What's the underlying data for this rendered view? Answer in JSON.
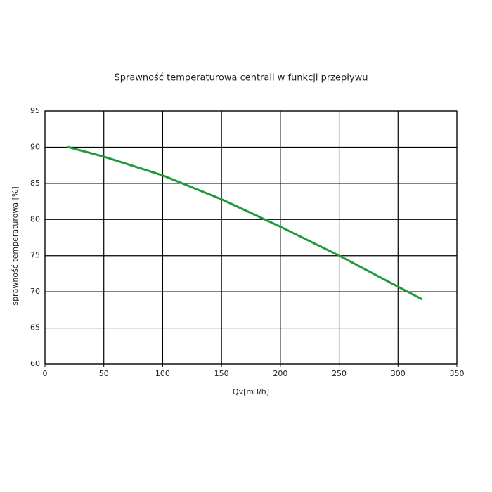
{
  "chart_data": {
    "type": "line",
    "title": "Sprawność temperaturowa centrali w funkcji przepływu",
    "x_label": "Qv[m3/h]",
    "y_label": "sprawność temperaturowa [%]",
    "x": [
      20,
      50,
      100,
      150,
      200,
      250,
      300,
      320
    ],
    "values": [
      90,
      88.7,
      86.1,
      82.8,
      79,
      75,
      70.7,
      69
    ],
    "color": "#1f9a3a",
    "xlim": [
      0,
      350
    ],
    "xticks": [
      0,
      50,
      100,
      150,
      200,
      250,
      300,
      350
    ],
    "ylim": [
      60,
      95
    ],
    "yticks": [
      60,
      65,
      70,
      75,
      80,
      85,
      90,
      95
    ],
    "grid": true
  }
}
